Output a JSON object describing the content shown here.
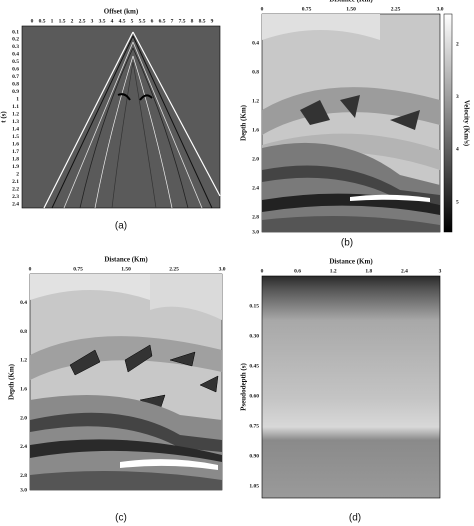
{
  "panels": [
    {
      "caption": "(a)",
      "x_title": "Offset (km)",
      "y_title": "t (s)",
      "x_ticks": [
        "0",
        "0.5",
        "1",
        "1.5",
        "2",
        "2.5",
        "3",
        "3.5",
        "4",
        "4.5",
        "5",
        "5.5",
        "6",
        "6.5",
        "7",
        "7.5",
        "8",
        "8.5",
        "9"
      ],
      "y_ticks": [
        "0.1",
        "0.2",
        "0.3",
        "0.4",
        "0.5",
        "0.6",
        "0.7",
        "0.8",
        "0.9",
        "1",
        "1.1",
        "1.2",
        "1.3",
        "1.4",
        "1.5",
        "1.6",
        "1.7",
        "1.8",
        "1.9",
        "2",
        "2.1",
        "2.2",
        "2.3",
        "2.4"
      ]
    },
    {
      "caption": "(b)",
      "x_title": "Distance (Km)",
      "y_title": "Depth (Km)",
      "x_ticks": [
        "0",
        "0.75",
        "1.50",
        "2.25",
        "3.0"
      ],
      "y_ticks": [
        "0.4",
        "0.8",
        "1.2",
        "1.6",
        "2.0",
        "2.4",
        "2.8",
        "3.0"
      ],
      "colorbar": {
        "title": "Velocity (Km/s)",
        "ticks": [
          "2",
          "3",
          "4",
          "5"
        ]
      }
    },
    {
      "caption": "(c)",
      "x_title": "Distance (Km)",
      "y_title": "Depth (Km)",
      "x_ticks": [
        "0",
        "0.75",
        "1.50",
        "2.25",
        "3.0"
      ],
      "y_ticks": [
        "0.4",
        "0.8",
        "1.2",
        "1.6",
        "2.0",
        "2.4",
        "2.8",
        "3.0"
      ]
    },
    {
      "caption": "(d)",
      "x_title": "Distance (Km)",
      "y_title": "Pseudodepth (s)",
      "x_ticks": [
        "0",
        "0.6",
        "1.2",
        "1.8",
        "2.4",
        "3"
      ],
      "y_ticks": [
        "0.15",
        "0.30",
        "0.45",
        "0.60",
        "0.75",
        "0.90",
        "1.05"
      ]
    }
  ]
}
